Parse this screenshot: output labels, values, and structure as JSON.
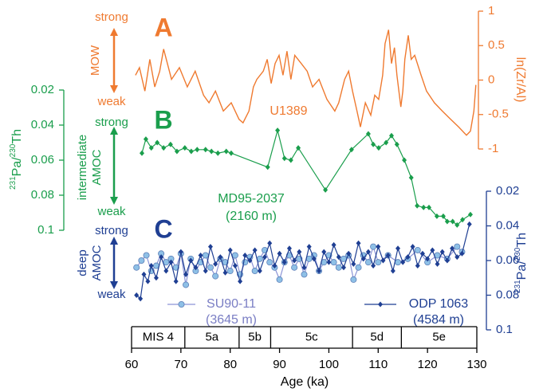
{
  "chart_data": [
    {
      "type": "line",
      "panel_label": "A",
      "color": "#ef7a30",
      "y_axis_side": "right",
      "y_inverted": false,
      "ylabel": "ln(Zr/Al)",
      "ylim": [
        -1,
        1
      ],
      "yticks": [
        -1,
        -0.5,
        0,
        0.5,
        1
      ],
      "strong": "strong",
      "weak": "weak",
      "process": [
        "MOW"
      ],
      "series": [
        {
          "name": "U1389",
          "color": "#ef7a30",
          "marker": "none",
          "x": [
            60.8,
            61.6,
            62.7,
            63.7,
            64.7,
            65.7,
            66.5,
            68.1,
            69.7,
            71.3,
            72.9,
            74.6,
            75.7,
            77.0,
            78.6,
            80.2,
            81.8,
            82.6,
            83.8,
            84.7,
            85.4,
            86.7,
            87.5,
            88.3,
            89.1,
            89.9,
            90.7,
            91.5,
            92.3,
            93.1,
            94.4,
            95.6,
            96.7,
            98.0,
            99.6,
            101.2,
            102.0,
            103.2,
            104.0,
            104.8,
            105.7,
            106.4,
            107.4,
            108.5,
            109.3,
            110.1,
            110.9,
            111.4,
            112.1,
            112.7,
            113.3,
            113.8,
            114.6,
            115.0,
            115.4,
            116.1,
            116.7,
            117.4,
            118.7,
            119.8,
            121.4,
            123.0,
            124.7,
            126.3,
            127.9,
            128.7,
            129.4,
            129.8
          ],
          "values": [
            0.07,
            0.18,
            -0.16,
            0.3,
            -0.1,
            0.13,
            0.45,
            0.01,
            0.18,
            -0.1,
            0.13,
            -0.22,
            -0.33,
            -0.16,
            -0.45,
            -0.33,
            -0.57,
            -0.62,
            -0.45,
            -0.1,
            0.01,
            0.13,
            0.3,
            -0.05,
            0.24,
            0.36,
            0.07,
            0.42,
            0.01,
            0.36,
            0.24,
            0.13,
            -0.1,
            0.01,
            -0.28,
            -0.45,
            -0.33,
            0.01,
            0.13,
            -0.16,
            -0.45,
            -0.68,
            -0.33,
            -0.51,
            -0.22,
            -0.28,
            0.07,
            0.53,
            0.73,
            0.24,
            0.47,
            0.07,
            -0.39,
            -0.16,
            0.3,
            0.65,
            0.3,
            0.36,
            0.07,
            -0.16,
            -0.33,
            -0.45,
            -0.57,
            -0.68,
            -0.8,
            -0.74,
            -0.45,
            -0.07
          ]
        }
      ]
    },
    {
      "type": "line",
      "panel_label": "B",
      "color": "#1a9e4c",
      "y_axis_side": "left",
      "y_inverted": true,
      "ylabel": [
        "231",
        "Pa/",
        "230",
        "Th"
      ],
      "ylim": [
        0.02,
        0.1
      ],
      "yticks": [
        0.02,
        0.04,
        0.06,
        0.08,
        0.1
      ],
      "strong": "strong",
      "weak": "weak",
      "process": [
        "intermediate",
        "AMOC"
      ],
      "series": [
        {
          "name": "MD95-2037",
          "depth": "(2160 m)",
          "color": "#1a9e4c",
          "marker": "diamond",
          "x": [
            62.1,
            62.9,
            64.0,
            65.2,
            66.5,
            67.9,
            69.2,
            70.8,
            72.1,
            73.3,
            75.0,
            76.2,
            77.5,
            79.2,
            80.2,
            87.6,
            89.6,
            91.0,
            92.3,
            93.8,
            99.3,
            104.6,
            108.0,
            109.0,
            110.1,
            111.6,
            112.7,
            113.8,
            115.3,
            116.7,
            117.9,
            119.2,
            120.3,
            121.9,
            123.2,
            124.0,
            125.1,
            126.0,
            127.1,
            128.7
          ],
          "values": [
            0.056,
            0.048,
            0.053,
            0.05,
            0.053,
            0.051,
            0.055,
            0.053,
            0.055,
            0.054,
            0.054,
            0.055,
            0.056,
            0.055,
            0.056,
            0.064,
            0.043,
            0.059,
            0.06,
            0.053,
            0.077,
            0.054,
            0.045,
            0.051,
            0.053,
            0.05,
            0.046,
            0.051,
            0.06,
            0.07,
            0.086,
            0.087,
            0.087,
            0.092,
            0.092,
            0.095,
            0.095,
            0.097,
            0.094,
            0.091
          ]
        }
      ]
    },
    {
      "type": "line",
      "panel_label": "C",
      "color": "#1f3f93",
      "y_axis_side": "right",
      "y_inverted": true,
      "ylabel": [
        "231",
        "Pa/",
        "230",
        "Th"
      ],
      "ylim": [
        0.02,
        0.1
      ],
      "yticks": [
        0.02,
        0.04,
        0.06,
        0.08,
        0.1
      ],
      "strong": "strong",
      "weak": "weak",
      "process": [
        "deep",
        "AMOC"
      ],
      "series": [
        {
          "name": "SU90-11",
          "depth": "(3645 m)",
          "color": "#8c94d6",
          "marker": "circle",
          "marker_color": "#8ec0e6",
          "x": [
            61,
            62,
            63,
            64,
            65,
            66,
            67,
            68,
            69,
            70,
            71,
            72,
            73,
            74,
            75,
            76,
            77,
            78,
            79,
            80,
            81,
            82,
            83,
            84,
            85,
            86,
            87,
            88,
            89,
            90,
            91,
            92,
            93,
            94,
            95,
            96,
            97,
            98,
            99,
            100,
            101,
            102,
            103,
            104,
            105,
            106,
            107,
            108,
            109,
            110,
            112,
            114,
            116,
            118,
            120,
            122,
            124,
            126,
            127
          ],
          "values": [
            0.064,
            0.06,
            0.057,
            0.066,
            0.063,
            0.056,
            0.061,
            0.059,
            0.064,
            0.056,
            0.074,
            0.059,
            0.066,
            0.061,
            0.057,
            0.064,
            0.069,
            0.059,
            0.061,
            0.066,
            0.057,
            0.068,
            0.061,
            0.058,
            0.066,
            0.059,
            0.054,
            0.061,
            0.064,
            0.071,
            0.061,
            0.057,
            0.064,
            0.059,
            0.068,
            0.059,
            0.057,
            0.066,
            0.061,
            0.057,
            0.061,
            0.064,
            0.059,
            0.057,
            0.071,
            0.064,
            0.057,
            0.061,
            0.052,
            0.061,
            0.057,
            0.061,
            0.059,
            0.054,
            0.061,
            0.057,
            0.059,
            0.052,
            0.055
          ]
        },
        {
          "name": "ODP 1063",
          "depth": "(4584 m)",
          "color": "#1f3f93",
          "marker": "diamond",
          "x": [
            61,
            61.8,
            62.5,
            63.3,
            64,
            65,
            66,
            67,
            68,
            69,
            70,
            71,
            72,
            73,
            74,
            75,
            76,
            77,
            78,
            79,
            80,
            81,
            82,
            83,
            84,
            85,
            86,
            87,
            88,
            89,
            90,
            91,
            92,
            93,
            94,
            95,
            96,
            97,
            98,
            99,
            100,
            101,
            102,
            103,
            104,
            105,
            106,
            107,
            108,
            109,
            110,
            111,
            112,
            113,
            114,
            115,
            116,
            117,
            118,
            119,
            120,
            121,
            122,
            123,
            124,
            125,
            126,
            127,
            128.5
          ],
          "values": [
            0.08,
            0.082,
            0.068,
            0.072,
            0.063,
            0.07,
            0.058,
            0.066,
            0.061,
            0.072,
            0.055,
            0.068,
            0.06,
            0.064,
            0.057,
            0.066,
            0.052,
            0.062,
            0.058,
            0.067,
            0.054,
            0.063,
            0.072,
            0.057,
            0.06,
            0.054,
            0.066,
            0.058,
            0.05,
            0.063,
            0.056,
            0.061,
            0.053,
            0.06,
            0.055,
            0.064,
            0.052,
            0.059,
            0.066,
            0.055,
            0.061,
            0.051,
            0.058,
            0.064,
            0.056,
            0.062,
            0.05,
            0.059,
            0.055,
            0.063,
            0.052,
            0.06,
            0.057,
            0.066,
            0.053,
            0.061,
            0.058,
            0.052,
            0.063,
            0.056,
            0.059,
            0.054,
            0.062,
            0.055,
            0.06,
            0.053,
            0.058,
            0.056,
            0.039
          ]
        }
      ]
    }
  ],
  "x_axis": {
    "label": "Age (ka)",
    "xlim": [
      60,
      130
    ],
    "xticks": [
      60,
      70,
      80,
      90,
      100,
      110,
      120,
      130
    ],
    "stages": [
      {
        "label": "MIS 4",
        "start": 60,
        "end": 70.8
      },
      {
        "label": "5a",
        "start": 70.8,
        "end": 81.8
      },
      {
        "label": "5b",
        "start": 81.8,
        "end": 88.2
      },
      {
        "label": "5c",
        "start": 88.2,
        "end": 104.8
      },
      {
        "label": "5d",
        "start": 104.8,
        "end": 114.7
      },
      {
        "label": "5e",
        "start": 114.7,
        "end": 130
      }
    ]
  }
}
